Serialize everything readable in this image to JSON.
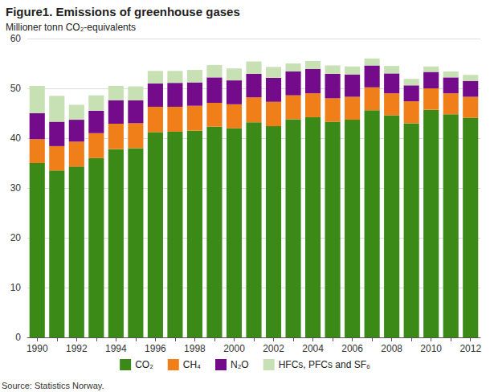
{
  "chart_data": {
    "type": "bar",
    "title": "Figure1. Emissions of greenhouse gases",
    "subtitle": "Millioner tonn CO₂-equivalents",
    "source": "Source: Statistics Norway.",
    "categories": [
      "1990",
      null,
      "1992",
      null,
      "1994",
      null,
      "1996",
      null,
      "1998",
      null,
      "2000",
      null,
      "2002",
      null,
      "2004",
      null,
      "2006",
      null,
      "2008",
      null,
      "2010",
      null,
      "2012"
    ],
    "series": [
      {
        "name": "CO₂",
        "color": "#3b8a17",
        "values": [
          35.0,
          33.5,
          34.3,
          36.0,
          37.8,
          38.0,
          41.2,
          41.3,
          41.5,
          42.3,
          42.0,
          43.2,
          42.4,
          43.8,
          44.2,
          43.3,
          43.7,
          45.6,
          44.6,
          43.0,
          45.7,
          44.8,
          44.1
        ]
      },
      {
        "name": "CH₄",
        "color": "#f07f1a",
        "values": [
          4.8,
          4.9,
          5.0,
          5.0,
          5.1,
          5.0,
          5.1,
          5.0,
          5.0,
          4.8,
          4.8,
          5.0,
          4.9,
          4.8,
          4.8,
          4.7,
          4.6,
          4.6,
          4.4,
          4.4,
          4.3,
          4.2,
          4.2
        ]
      },
      {
        "name": "N₂O",
        "color": "#740b8a",
        "values": [
          5.2,
          4.9,
          4.4,
          4.5,
          4.7,
          4.6,
          4.7,
          4.8,
          4.7,
          5.1,
          4.8,
          4.7,
          4.8,
          4.8,
          4.9,
          4.9,
          4.5,
          4.4,
          4.0,
          3.2,
          3.3,
          3.2,
          3.2
        ]
      },
      {
        "name": "HFCs, PFCs and SF₆",
        "color": "#c7e1b5",
        "values": [
          5.5,
          5.2,
          3.0,
          3.1,
          2.9,
          2.8,
          2.5,
          2.4,
          2.5,
          2.5,
          2.4,
          2.5,
          2.2,
          1.6,
          1.6,
          1.7,
          1.6,
          1.4,
          1.5,
          1.3,
          1.1,
          1.2,
          1.2
        ]
      }
    ],
    "ylim": [
      0,
      60
    ],
    "yticks": [
      0,
      10,
      20,
      30,
      40,
      50,
      60
    ],
    "stacked": true,
    "grid": true,
    "legend": "bottom"
  }
}
